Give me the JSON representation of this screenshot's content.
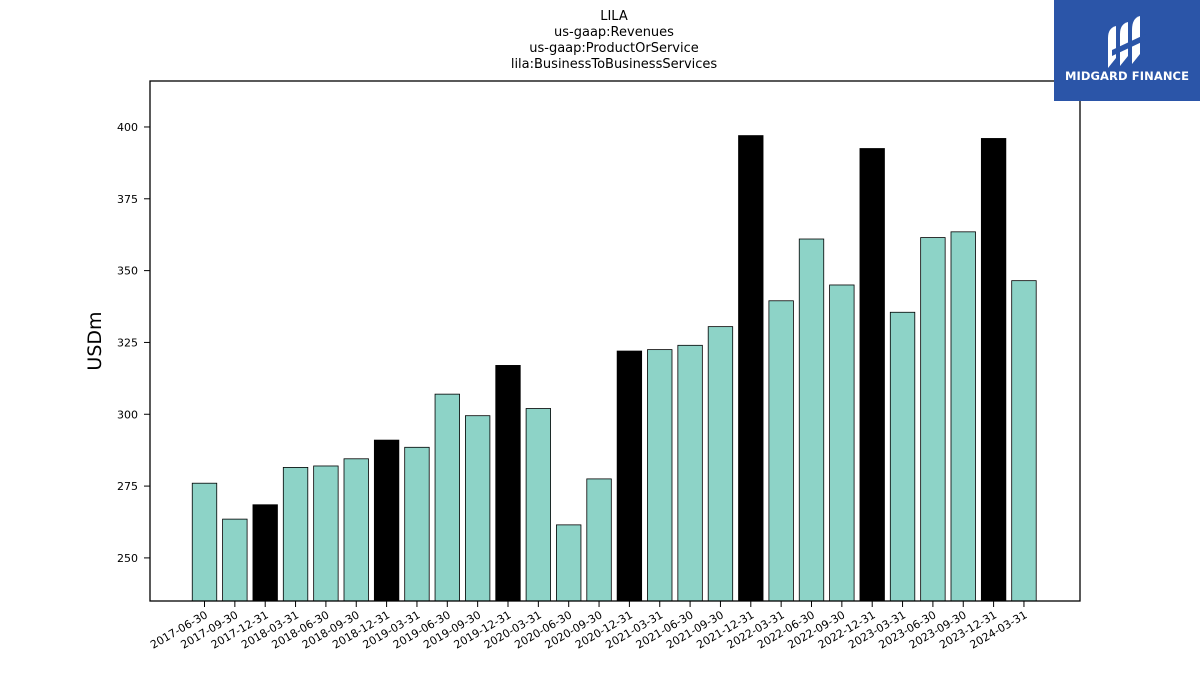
{
  "chart_data": {
    "type": "bar",
    "title_lines": [
      "LILA",
      "us-gaap:Revenues",
      "us-gaap:ProductOrService",
      "lila:BusinessToBusinessServices"
    ],
    "ylabel": "USDm",
    "ylim": [
      235,
      416
    ],
    "yticks": [
      250,
      275,
      300,
      325,
      350,
      375,
      400
    ],
    "categories": [
      "2017-06-30",
      "2017-09-30",
      "2017-12-31",
      "2018-03-31",
      "2018-06-30",
      "2018-09-30",
      "2018-12-31",
      "2019-03-31",
      "2019-06-30",
      "2019-09-30",
      "2019-12-31",
      "2020-03-31",
      "2020-06-30",
      "2020-09-30",
      "2020-12-31",
      "2021-03-31",
      "2021-06-30",
      "2021-09-30",
      "2021-12-31",
      "2022-03-31",
      "2022-06-30",
      "2022-09-30",
      "2022-12-31",
      "2023-03-31",
      "2023-06-30",
      "2023-09-30",
      "2023-12-31",
      "2024-03-31"
    ],
    "values": [
      276,
      263.5,
      268.5,
      281.5,
      282,
      284.5,
      291,
      288.5,
      307,
      299.5,
      317,
      302,
      261.5,
      277.5,
      322,
      322.5,
      324,
      330.5,
      397,
      339.5,
      361,
      345,
      392.5,
      335.5,
      361.5,
      363.5,
      396,
      346.5
    ],
    "highlight": [
      false,
      false,
      true,
      false,
      false,
      false,
      true,
      false,
      false,
      false,
      true,
      false,
      false,
      false,
      true,
      false,
      false,
      false,
      true,
      false,
      false,
      false,
      true,
      false,
      false,
      false,
      true,
      false
    ],
    "colors": {
      "normal": "#8dd3c7",
      "highlight": "#000000",
      "edge": "#000000"
    }
  },
  "logo": {
    "text": "MIDGARD FINANCE",
    "background": "#2b55a8"
  }
}
